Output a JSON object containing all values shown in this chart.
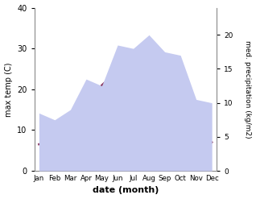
{
  "months": [
    "Jan",
    "Feb",
    "Mar",
    "Apr",
    "May",
    "Jun",
    "Jul",
    "Aug",
    "Sep",
    "Oct",
    "Nov",
    "Dec"
  ],
  "max_temp": [
    6.5,
    7.5,
    11.5,
    16.5,
    21.0,
    24.5,
    27.0,
    26.5,
    21.5,
    15.5,
    10.0,
    7.0
  ],
  "precipitation": [
    8.5,
    7.5,
    9.0,
    13.5,
    12.5,
    18.5,
    18.0,
    20.0,
    17.5,
    17.0,
    10.5,
    10.0
  ],
  "temp_color": "#8B3A62",
  "precip_fill_color": "#c5caf0",
  "precip_line_color": "#c5caf0",
  "ylim_left": [
    0,
    40
  ],
  "ylim_right": [
    0,
    24
  ],
  "ylabel_left": "max temp (C)",
  "ylabel_right": "med. precipitation (kg/m2)",
  "xlabel": "date (month)",
  "right_ticks": [
    0,
    5,
    10,
    15,
    20
  ],
  "left_ticks": [
    0,
    10,
    20,
    30,
    40
  ],
  "bg_color": "#ffffff"
}
